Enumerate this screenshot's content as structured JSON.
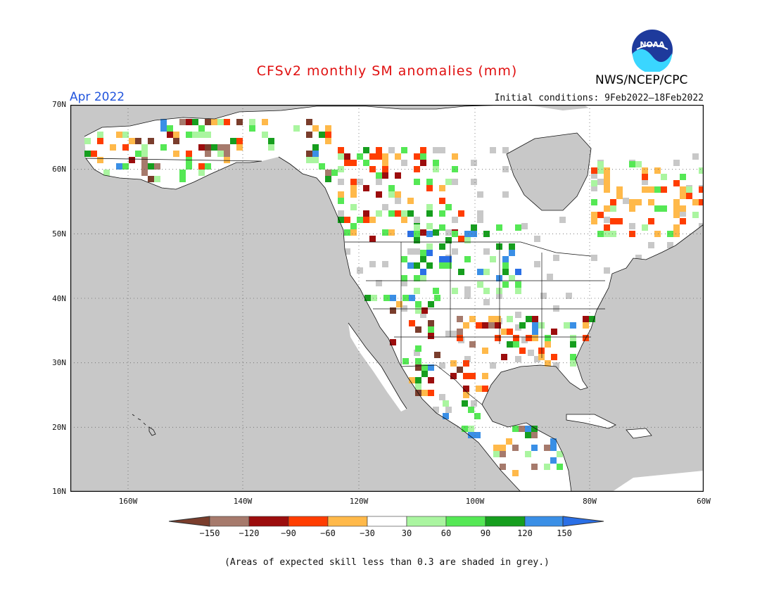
{
  "title": "CFSv2 monthly SM anomalies (mm)",
  "agency": "NWS/NCEP/CPC",
  "logo_text": "NOAA",
  "period": "Apr 2022",
  "initial_conditions": "Initial conditions: 9Feb2022–18Feb2022",
  "footnote": "(Areas of expected skill less than 0.3 are shaded in grey.)",
  "lat_labels": [
    "70N",
    "60N",
    "50N",
    "40N",
    "30N",
    "20N",
    "10N"
  ],
  "lon_labels": [
    "160W",
    "140W",
    "120W",
    "100W",
    "80W",
    "60W"
  ],
  "colorbar": {
    "labels": [
      "−150",
      "−120",
      "−90",
      "−60",
      "−30",
      "30",
      "60",
      "90",
      "120",
      "150"
    ],
    "colors": [
      "#7a3d2c",
      "#a67a6c",
      "#9c0d0d",
      "#ff3d00",
      "#ffb94a",
      "#ffffff",
      "#aaf5a0",
      "#55e855",
      "#169e1e",
      "#3a8fe6",
      "#2a6fe6"
    ]
  },
  "map_colors": {
    "ocean": "#c8c8c8",
    "land": "#ffffff",
    "low_skill": "#c8c8c8"
  }
}
